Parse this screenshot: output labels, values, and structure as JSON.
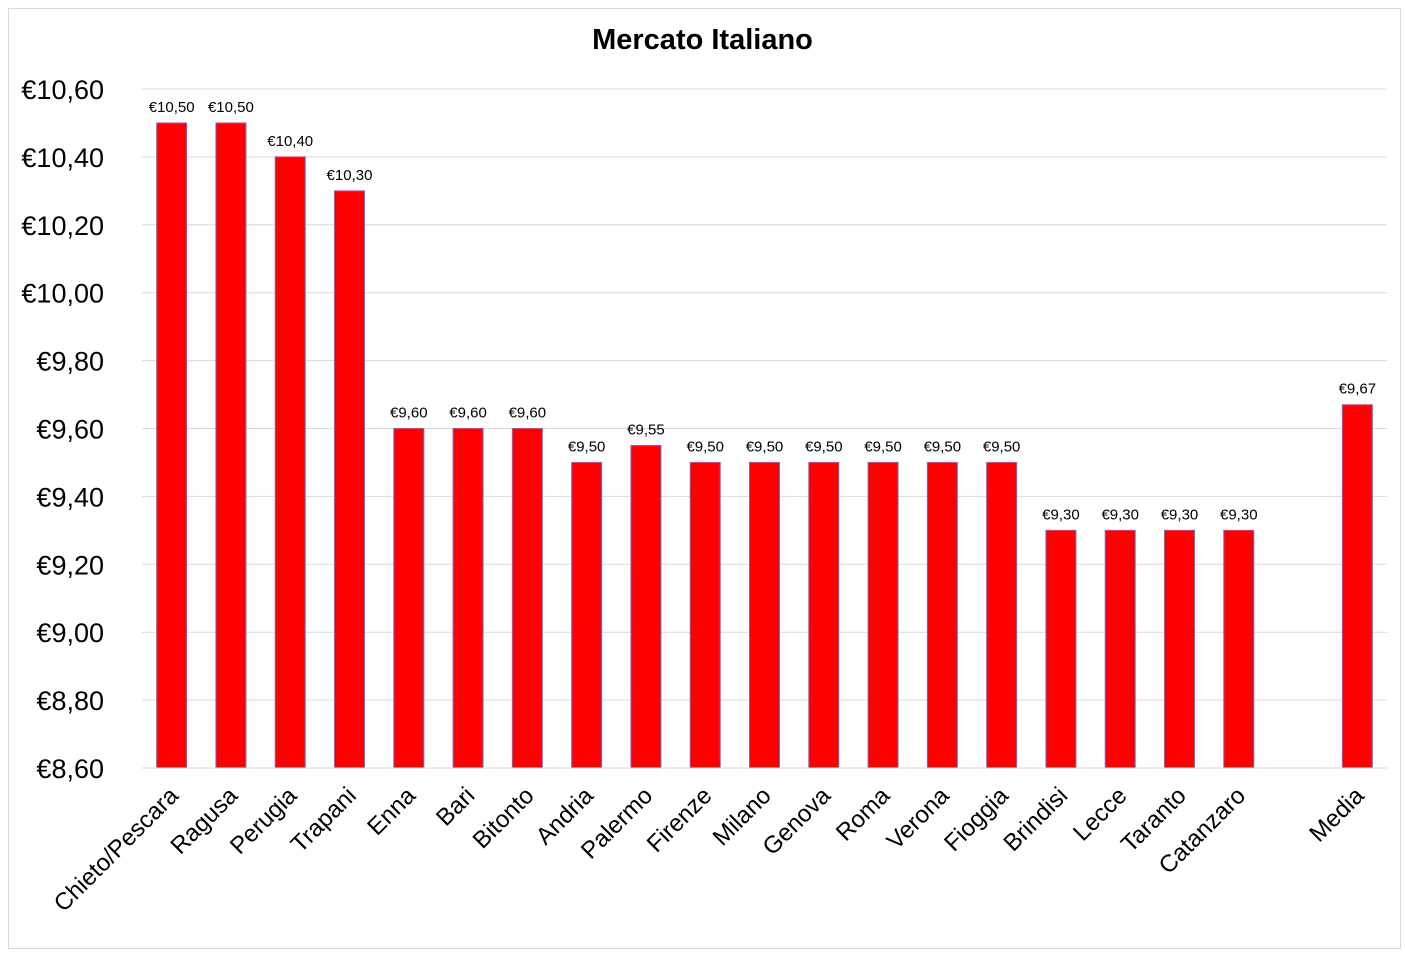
{
  "chart_data": {
    "type": "bar",
    "title": "Mercato Italiano",
    "xlabel": "",
    "ylabel": "",
    "categories": [
      "Chieto/Pescara",
      "Ragusa",
      "Perugia",
      "Trapani",
      "Enna",
      "Bari",
      "Bitonto",
      "Andria",
      "Palermo",
      "Firenze",
      "Milano",
      "Genova",
      "Roma",
      "Verona",
      "Fioggia",
      "Brindisi",
      "Lecce",
      "Taranto",
      "Catanzaro",
      "",
      "Media"
    ],
    "values": [
      10.5,
      10.5,
      10.4,
      10.3,
      9.6,
      9.6,
      9.6,
      9.5,
      9.55,
      9.5,
      9.5,
      9.5,
      9.5,
      9.5,
      9.5,
      9.3,
      9.3,
      9.3,
      9.3,
      null,
      9.67
    ],
    "data_labels": [
      "€10,50",
      "€10,50",
      "€10,40",
      "€10,30",
      "€9,60",
      "€9,60",
      "€9,60",
      "€9,50",
      "€9,55",
      "€9,50",
      "€9,50",
      "€9,50",
      "€9,50",
      "€9,50",
      "€9,50",
      "€9,30",
      "€9,30",
      "€9,30",
      "€9,30",
      "",
      "€9,67"
    ],
    "ylim": [
      8.6,
      10.6
    ],
    "yticks": [
      8.6,
      8.8,
      9.0,
      9.2,
      9.4,
      9.6,
      9.8,
      10.0,
      10.2,
      10.4,
      10.6
    ],
    "ytick_labels": [
      "€8,60",
      "€8,80",
      "€9,00",
      "€9,20",
      "€9,40",
      "€9,60",
      "€9,80",
      "€10,00",
      "€10,20",
      "€10,40",
      "€10,60"
    ],
    "grid": true,
    "legend": "none",
    "bar_color": "#ff0000",
    "bar_edge_color": "#6f6fc8",
    "grid_color": "#d9d9d9"
  }
}
